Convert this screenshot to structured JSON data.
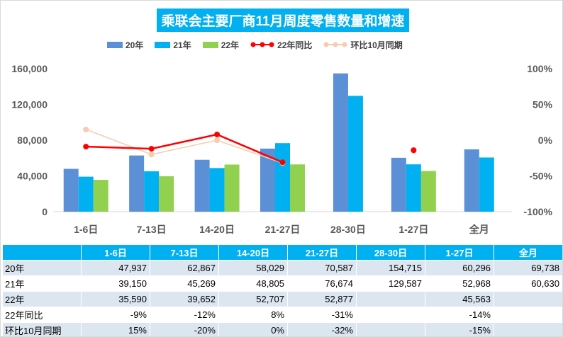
{
  "title": "乘联会主要厂商11月周度零售数量和增速",
  "colors": {
    "s20": "#5b8fd6",
    "s21": "#00b0f0",
    "s22": "#92d050",
    "r22": "#ff0000",
    "rm": "#f8cbad",
    "title_bg": "#00b0f0"
  },
  "legend": [
    "20年",
    "21年",
    "22年",
    "22年同比",
    "环比10月同期"
  ],
  "chart_data": {
    "type": "bar",
    "categories": [
      "1-6日",
      "7-13日",
      "14-20日",
      "21-27日",
      "28-30日",
      "1-27日",
      "全月"
    ],
    "series": [
      {
        "name": "20年",
        "values": [
          47937,
          62867,
          58029,
          70587,
          154715,
          60296,
          69738
        ]
      },
      {
        "name": "21年",
        "values": [
          39150,
          45269,
          48805,
          76674,
          129587,
          52968,
          60630
        ]
      },
      {
        "name": "22年",
        "values": [
          35590,
          39652,
          52707,
          52877,
          null,
          45563,
          null
        ]
      }
    ],
    "line_series": [
      {
        "name": "22年同比",
        "values": [
          -9,
          -12,
          8,
          -31,
          null,
          -14,
          null
        ]
      },
      {
        "name": "环比10月同期",
        "values": [
          15,
          -20,
          0,
          -32,
          null,
          -15,
          null
        ]
      }
    ],
    "y_left": {
      "min": 0,
      "max": 160000,
      "ticks": [
        "0",
        "40,000",
        "80,000",
        "120,000",
        "160,000"
      ]
    },
    "y_right": {
      "min": -100,
      "max": 100,
      "ticks": [
        "-100%",
        "-50%",
        "0%",
        "50%",
        "100%"
      ]
    }
  },
  "table": {
    "headers": [
      "",
      "1-6日",
      "7-13日",
      "14-20日",
      "21-27日",
      "28-30日",
      "1-27日",
      "全月"
    ],
    "rows": [
      [
        "20年",
        "47,937",
        "62,867",
        "58,029",
        "70,587",
        "154,715",
        "60,296",
        "69,738"
      ],
      [
        "21年",
        "39,150",
        "45,269",
        "48,805",
        "76,674",
        "129,587",
        "52,968",
        "60,630"
      ],
      [
        "22年",
        "35,590",
        "39,652",
        "52,707",
        "52,877",
        "",
        "45,563",
        ""
      ],
      [
        "22年同比",
        "-9%",
        "-12%",
        "8%",
        "-31%",
        "",
        "-14%",
        ""
      ],
      [
        "环比10月同期",
        "15%",
        "-20%",
        "0%",
        "-32%",
        "",
        "-15%",
        ""
      ]
    ]
  }
}
